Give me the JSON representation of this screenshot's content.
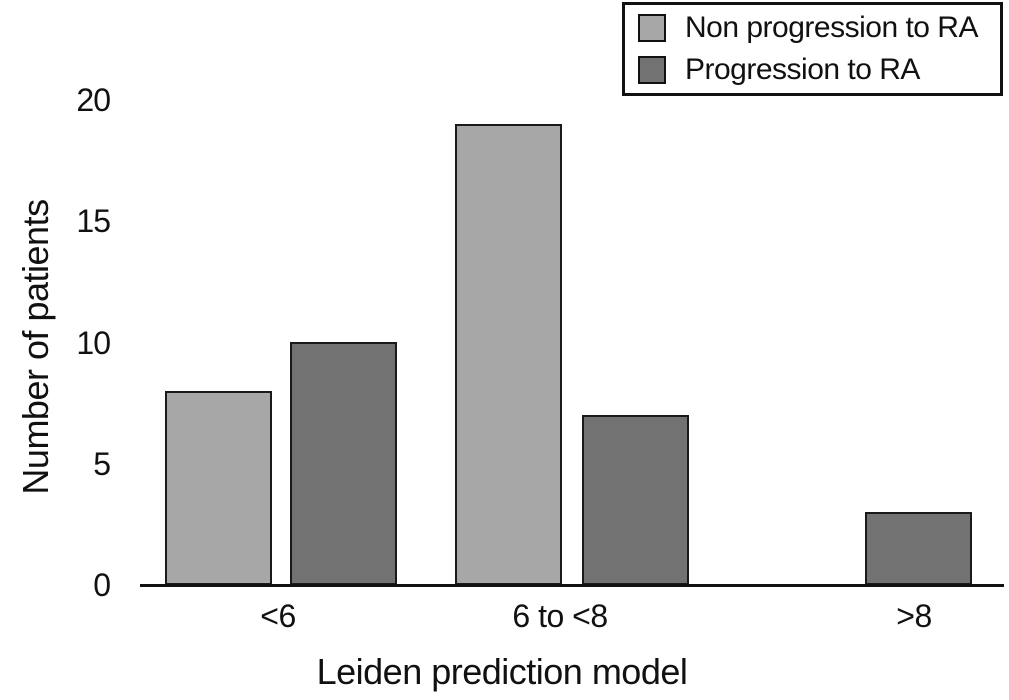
{
  "chart_data": {
    "type": "bar",
    "title": "",
    "xlabel": "Leiden prediction model",
    "ylabel": "Number of patients",
    "categories": [
      "<6",
      "6 to <8",
      ">8"
    ],
    "series": [
      {
        "name": "Non progression to RA",
        "color": "#a7a7a7",
        "values": [
          8,
          19,
          0
        ]
      },
      {
        "name": "Progression to RA",
        "color": "#727272",
        "values": [
          10,
          7,
          3
        ]
      }
    ],
    "yticks": [
      0,
      5,
      10,
      15,
      20
    ],
    "ylim": [
      0,
      20
    ],
    "grid": false,
    "legend_position": "top-right",
    "bar_outline_color": "#1a1a1a",
    "axis_color": "#111111",
    "background_color": "#ffffff"
  }
}
